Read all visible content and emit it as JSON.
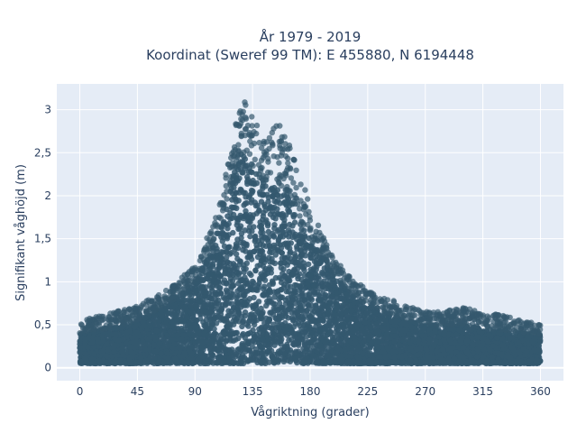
{
  "chart_data": {
    "type": "scatter",
    "title_line1": "År 1979 - 2019",
    "title_line2": "Koordinat (Sweref 99 TM): E 455880, N 6194448",
    "xlabel": "Vågriktning (grader)",
    "ylabel": "Signifikant våghöjd (m)",
    "xlim": [
      -18,
      378
    ],
    "ylim": [
      -0.15,
      3.3
    ],
    "x_ticks": [
      0,
      45,
      90,
      135,
      180,
      225,
      270,
      315,
      360
    ],
    "x_tick_labels": [
      "0",
      "45",
      "90",
      "135",
      "180",
      "225",
      "270",
      "315",
      "360"
    ],
    "y_ticks": [
      0,
      0.5,
      1,
      1.5,
      2,
      2.5,
      3
    ],
    "y_tick_labels": [
      "0",
      "0,5",
      "1",
      "1,5",
      "2",
      "2,5",
      "3"
    ],
    "marker_color": "#34586e",
    "background_color": "#e5ecf6",
    "grid": true,
    "series": [
      {
        "points_note": "",
        "envelope": [
          {
            "x": 0,
            "y": 0.55
          },
          {
            "x": 20,
            "y": 0.62
          },
          {
            "x": 45,
            "y": 0.72
          },
          {
            "x": 70,
            "y": 0.92
          },
          {
            "x": 90,
            "y": 1.2
          },
          {
            "x": 105,
            "y": 1.7
          },
          {
            "x": 115,
            "y": 2.3
          },
          {
            "x": 122,
            "y": 2.85
          },
          {
            "x": 128,
            "y": 3.15
          },
          {
            "x": 135,
            "y": 3.05
          },
          {
            "x": 145,
            "y": 2.6
          },
          {
            "x": 155,
            "y": 2.9
          },
          {
            "x": 165,
            "y": 2.55
          },
          {
            "x": 180,
            "y": 1.9
          },
          {
            "x": 195,
            "y": 1.35
          },
          {
            "x": 210,
            "y": 1.1
          },
          {
            "x": 225,
            "y": 0.9
          },
          {
            "x": 250,
            "y": 0.75
          },
          {
            "x": 270,
            "y": 0.65
          },
          {
            "x": 300,
            "y": 0.7
          },
          {
            "x": 315,
            "y": 0.65
          },
          {
            "x": 340,
            "y": 0.58
          },
          {
            "x": 360,
            "y": 0.5
          }
        ],
        "dense_envelope": [
          {
            "x": 0,
            "y": 0.4
          },
          {
            "x": 20,
            "y": 0.45
          },
          {
            "x": 45,
            "y": 0.55
          },
          {
            "x": 70,
            "y": 0.75
          },
          {
            "x": 90,
            "y": 1.0
          },
          {
            "x": 105,
            "y": 1.45
          },
          {
            "x": 115,
            "y": 1.95
          },
          {
            "x": 125,
            "y": 2.55
          },
          {
            "x": 132,
            "y": 2.45
          },
          {
            "x": 140,
            "y": 2.2
          },
          {
            "x": 150,
            "y": 2.15
          },
          {
            "x": 160,
            "y": 2.1
          },
          {
            "x": 170,
            "y": 1.8
          },
          {
            "x": 180,
            "y": 1.5
          },
          {
            "x": 195,
            "y": 1.15
          },
          {
            "x": 210,
            "y": 0.9
          },
          {
            "x": 225,
            "y": 0.72
          },
          {
            "x": 250,
            "y": 0.58
          },
          {
            "x": 270,
            "y": 0.5
          },
          {
            "x": 300,
            "y": 0.5
          },
          {
            "x": 315,
            "y": 0.45
          },
          {
            "x": 340,
            "y": 0.42
          },
          {
            "x": 360,
            "y": 0.38
          }
        ]
      }
    ]
  }
}
